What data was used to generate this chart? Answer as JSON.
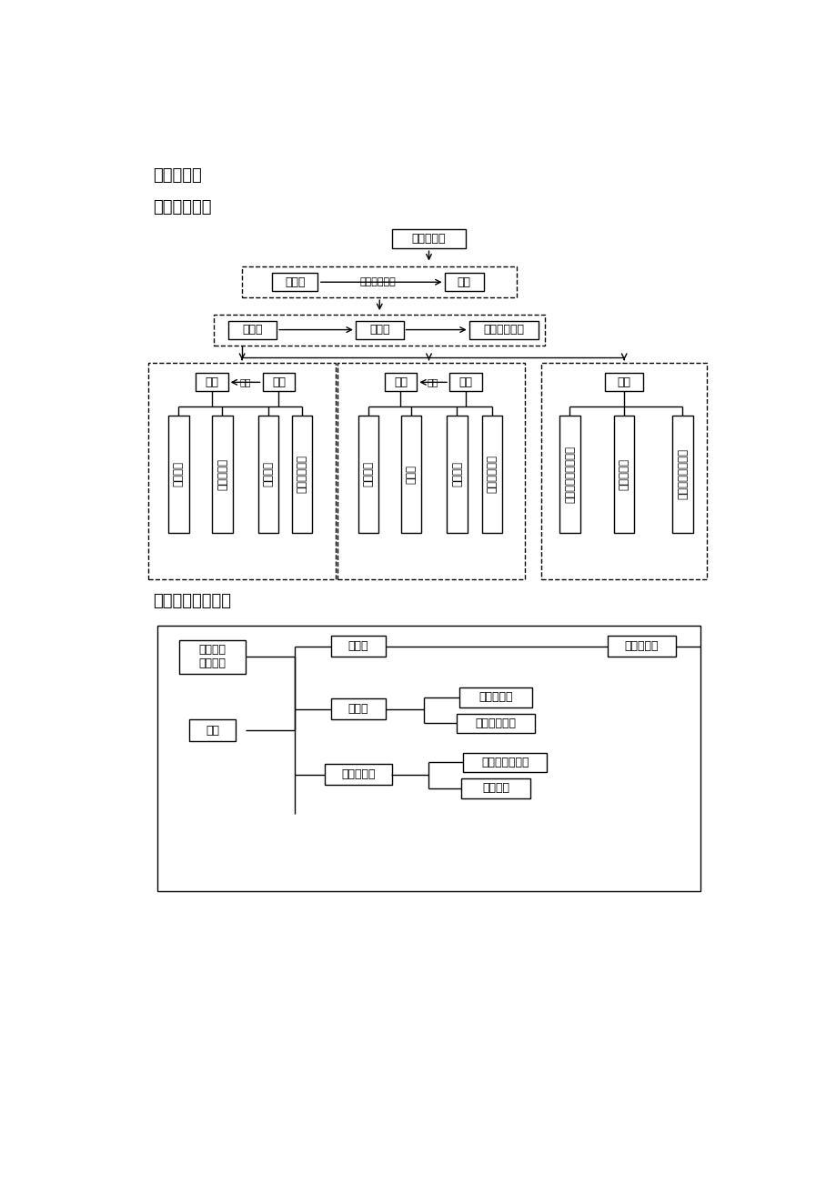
{
  "title1": "知识结构图",
  "section1": "一、有理数：",
  "section2": "二、整式的加减：",
  "bg_color": "#ffffff",
  "box_color": "#ffffff",
  "box_edge": "#000000"
}
